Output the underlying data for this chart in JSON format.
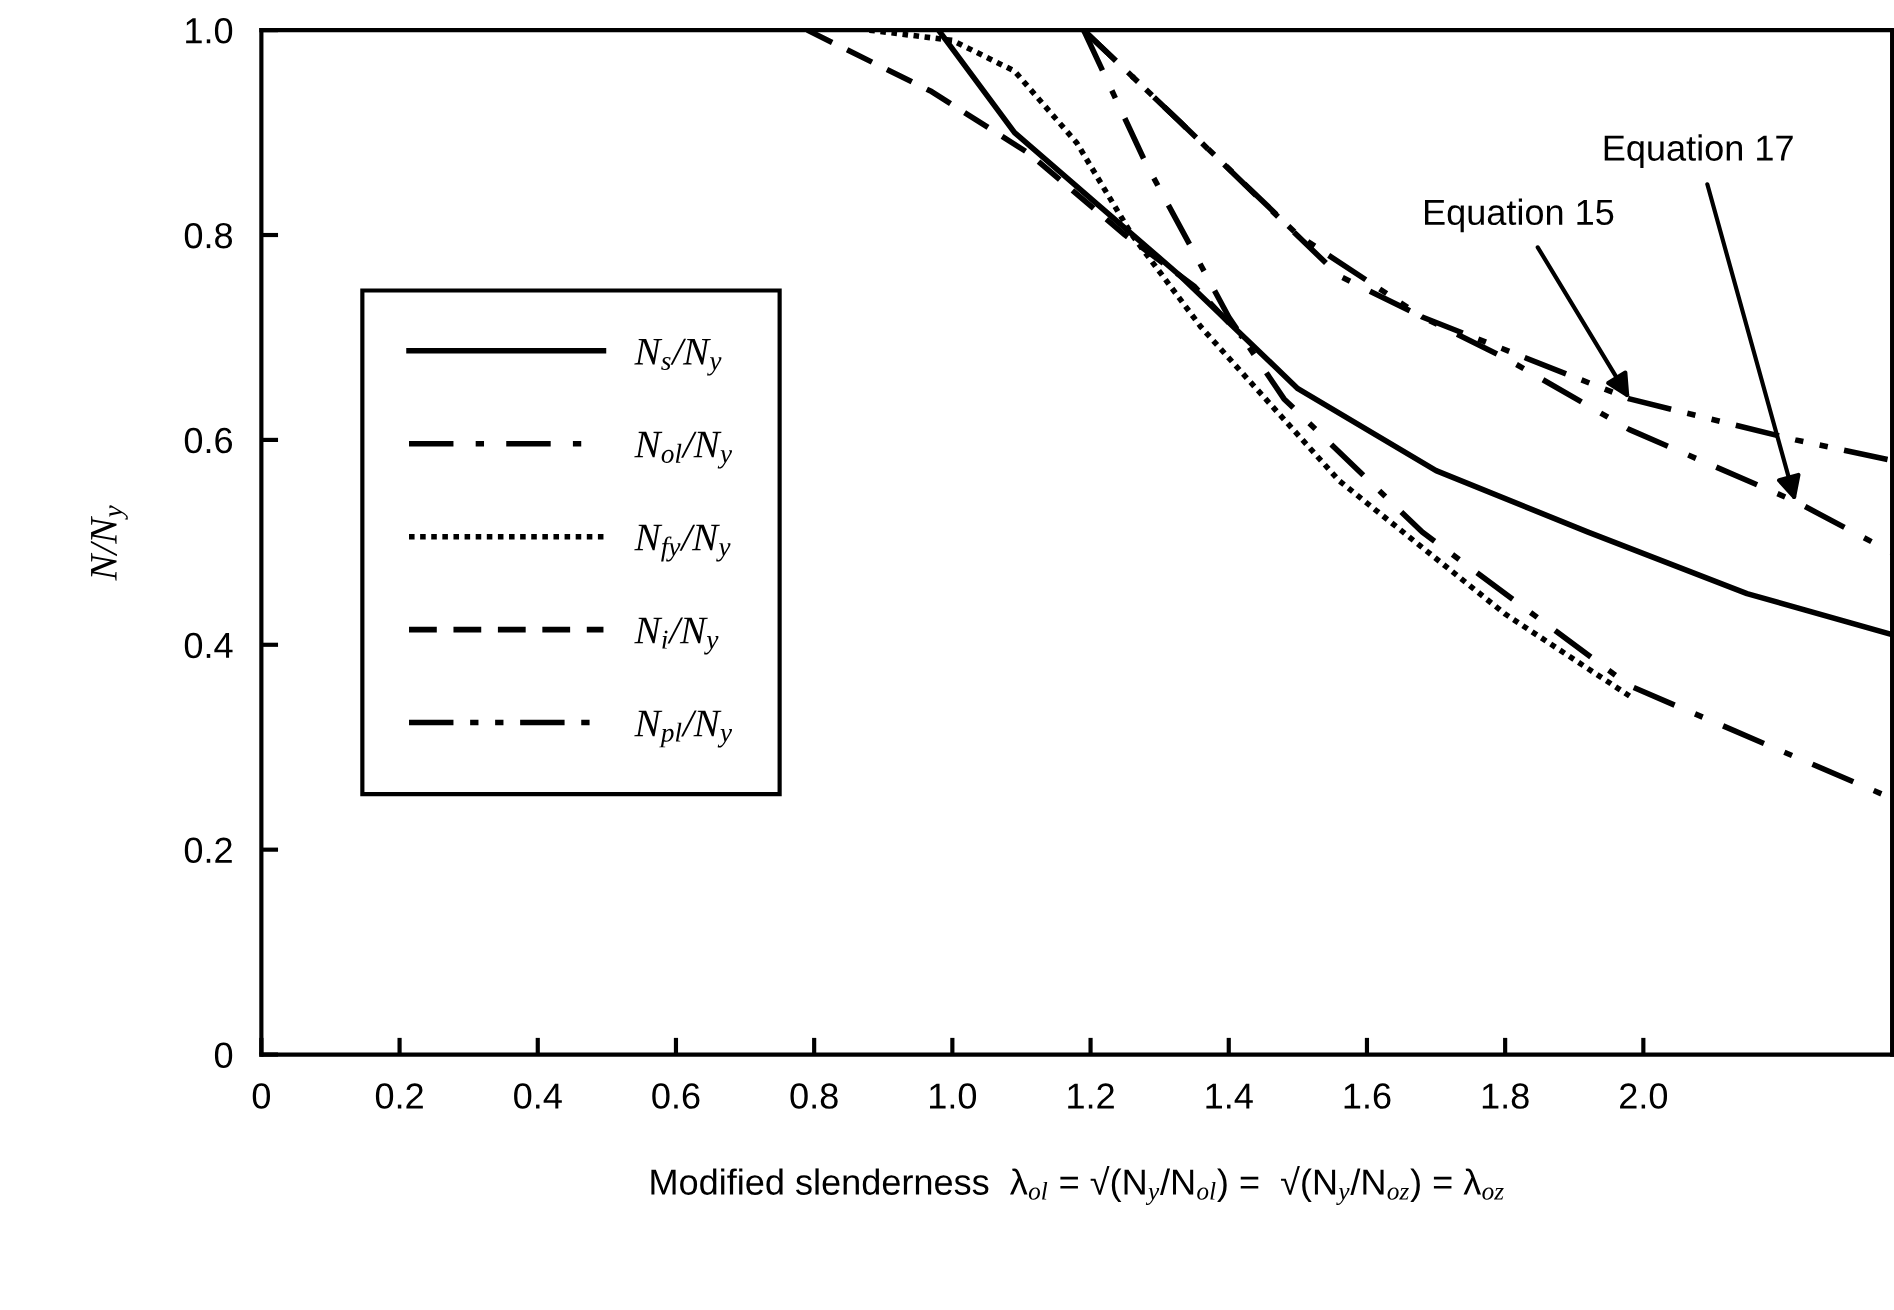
{
  "chart_data": {
    "type": "line",
    "xlabel": "Modified slenderness  λ$_{ol}$ = √(N$_{y}$/N$_{ol}$) =  √(N$_{y}$/N$_{oz}$) = λ$_{oz}$",
    "ylabel": "N/N$_{y}$",
    "xlim": [
      0,
      2.36
    ],
    "ylim": [
      0,
      1.0
    ],
    "xticks": [
      0,
      {
        "value": 0.2,
        "label": "0.2"
      },
      {
        "value": 0.4,
        "label": "0.4"
      },
      {
        "value": 0.6,
        "label": "0.6"
      },
      {
        "value": 0.8,
        "label": "0.8"
      },
      {
        "value": 1.0,
        "label": "1.0"
      },
      {
        "value": 1.2,
        "label": "1.2"
      },
      {
        "value": 1.4,
        "label": "1.4"
      },
      {
        "value": 1.6,
        "label": "1.6"
      },
      {
        "value": 1.8,
        "label": "1.8"
      },
      {
        "value": 2.0,
        "label": "2.0"
      }
    ],
    "yticks": [
      0,
      {
        "value": 0.2,
        "label": "0.2"
      },
      {
        "value": 0.4,
        "label": "0.4"
      },
      {
        "value": 0.6,
        "label": "0.6"
      },
      {
        "value": 0.8,
        "label": "0.8"
      },
      {
        "value": 1.0,
        "label": "1.0"
      }
    ],
    "grid": false,
    "legend": "left",
    "marker": "none",
    "series": [
      {
        "name": "N$_{s}$/N$_{y}$",
        "color": "#000000",
        "line_style": "solid",
        "x": [
          0.98,
          1.09,
          1.21,
          1.33,
          1.5,
          1.7,
          1.92,
          2.15,
          2.36
        ],
        "values": [
          1.0,
          0.9,
          0.83,
          0.76,
          0.65,
          0.57,
          0.51,
          0.45,
          0.41
        ]
      },
      {
        "name": "N$_{ol}$/N$_{y}$",
        "color": "#000000",
        "line_style": "dashdot",
        "x": [
          1.19,
          1.28,
          1.4,
          1.48,
          1.68,
          1.98,
          2.36
        ],
        "values": [
          1.0,
          0.87,
          0.72,
          0.64,
          0.51,
          0.36,
          0.25
        ]
      },
      {
        "name": "N$_{fy}$/N$_{y}$",
        "color": "#000000",
        "line_style": "dotted",
        "x": [
          0.88,
          1.0,
          1.09,
          1.18,
          1.26,
          1.36,
          1.56,
          1.8,
          1.98
        ],
        "values": [
          1.0,
          0.99,
          0.96,
          0.89,
          0.8,
          0.71,
          0.56,
          0.43,
          0.35
        ]
      },
      {
        "name": "N$_{i}$/N$_{y}$",
        "color": "#000000",
        "line_style": "dashed",
        "x": [
          0.79,
          0.97,
          1.11,
          1.25,
          1.35,
          1.42
        ],
        "values": [
          1.0,
          0.94,
          0.88,
          0.8,
          0.75,
          0.7
        ]
      },
      {
        "name": "N$_{pl}$/N$_{y}$",
        "color": "#000000",
        "line_style": "dashdotdot",
        "x": [
          1.19,
          1.33,
          1.5,
          1.68,
          1.98,
          2.22,
          2.36
        ],
        "values": [
          1.0,
          0.91,
          0.8,
          0.72,
          0.64,
          0.6,
          0.58
        ]
      },
      {
        "color": "#000000",
        "line_style": "dashdot",
        "x": [
          1.19,
          1.33,
          1.56,
          1.8,
          1.98,
          2.22,
          2.36
        ],
        "values": [
          1.0,
          0.91,
          0.76,
          0.68,
          0.61,
          0.54,
          0.49
        ]
      }
    ],
    "annotations": [
      {
        "text": "Equation 15",
        "x": 1.98,
        "y": 0.64
      },
      {
        "text": "Equation 17",
        "x": 2.22,
        "y": 0.54
      }
    ]
  }
}
